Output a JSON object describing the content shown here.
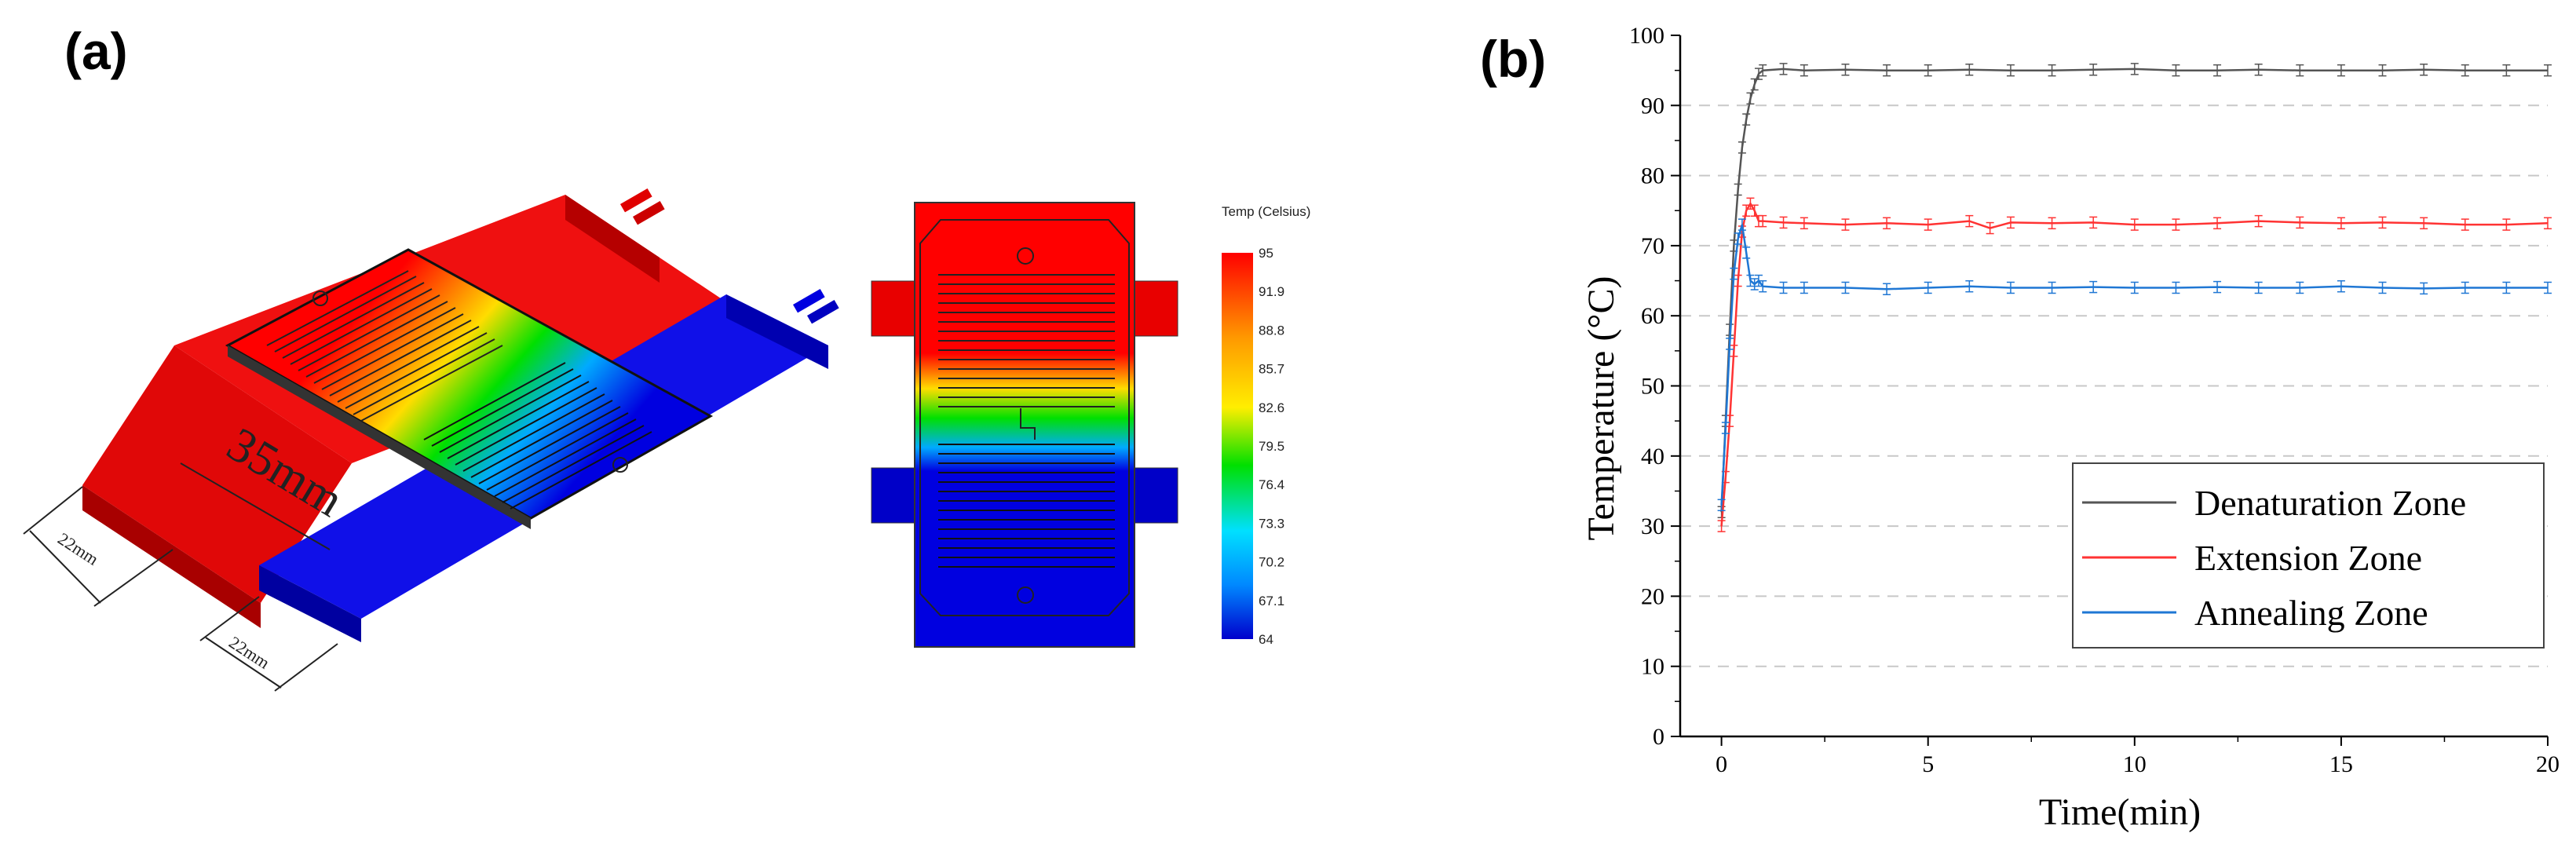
{
  "panel_a": {
    "label": "(a)",
    "dimension_35": "35mm",
    "dimension_22_left": "22mm",
    "dimension_22_right": "22mm",
    "colorbar": {
      "title": "Temp (Celsius)",
      "ticks": [
        "95",
        "91.9",
        "88.8",
        "85.7",
        "82.6",
        "79.5",
        "76.4",
        "73.3",
        "70.2",
        "67.1",
        "64"
      ]
    },
    "colors": {
      "hot": "#e60000",
      "cold": "#0000e0",
      "mid": "#00e000"
    }
  },
  "panel_b": {
    "label": "(b)"
  },
  "chart_data": {
    "type": "line",
    "xlabel": "Time(min)",
    "ylabel": "Temperature (°C)",
    "xlim": [
      -1,
      20
    ],
    "ylim": [
      0,
      100
    ],
    "xticks": [
      0,
      5,
      10,
      15,
      20
    ],
    "yticks": [
      0,
      10,
      20,
      30,
      40,
      50,
      60,
      70,
      80,
      90,
      100
    ],
    "grid": "horizontal dashed",
    "legend_position": "bottom-right",
    "series": [
      {
        "name": "Denaturation Zone",
        "color": "#555555",
        "x": [
          0,
          0.1,
          0.2,
          0.3,
          0.4,
          0.5,
          0.6,
          0.7,
          0.8,
          0.9,
          1.0,
          1.5,
          2,
          3,
          4,
          5,
          6,
          7,
          8,
          9,
          10,
          11,
          12,
          13,
          14,
          15,
          16,
          17,
          18,
          19,
          20
        ],
        "y": [
          32,
          45,
          58,
          70,
          78,
          84,
          88,
          91,
          93,
          94.5,
          95,
          95.2,
          95,
          95.1,
          95,
          95,
          95.1,
          95,
          95,
          95.1,
          95.2,
          95,
          95,
          95.1,
          95,
          95,
          95,
          95.1,
          95,
          95,
          95
        ]
      },
      {
        "name": "Extension Zone",
        "color": "#ff3333",
        "x": [
          0,
          0.1,
          0.2,
          0.3,
          0.4,
          0.5,
          0.6,
          0.7,
          0.8,
          0.9,
          1.0,
          1.5,
          2,
          3,
          4,
          5,
          6,
          6.5,
          7,
          8,
          9,
          10,
          11,
          12,
          13,
          14,
          15,
          16,
          17,
          18,
          19,
          20
        ],
        "y": [
          30,
          37,
          45,
          55,
          65,
          72,
          75,
          76,
          75,
          73.5,
          73.5,
          73.3,
          73.2,
          73,
          73.2,
          73,
          73.5,
          72.5,
          73.3,
          73.2,
          73.3,
          73,
          73,
          73.2,
          73.5,
          73.3,
          73.2,
          73.3,
          73.2,
          73,
          73,
          73.2
        ]
      },
      {
        "name": "Annealing Zone",
        "color": "#1f77d4",
        "x": [
          0,
          0.1,
          0.2,
          0.3,
          0.4,
          0.5,
          0.6,
          0.7,
          0.8,
          0.9,
          1.0,
          1.5,
          2,
          3,
          4,
          5,
          6,
          7,
          8,
          9,
          10,
          11,
          12,
          13,
          14,
          15,
          16,
          17,
          18,
          19,
          20
        ],
        "y": [
          33,
          44,
          56,
          66,
          71,
          73,
          69,
          65,
          64.5,
          65,
          64.2,
          64,
          64,
          64,
          63.8,
          64,
          64.2,
          64,
          64,
          64.1,
          64,
          64,
          64.1,
          64,
          64,
          64.2,
          64,
          63.9,
          64,
          64,
          64
        ]
      }
    ]
  }
}
